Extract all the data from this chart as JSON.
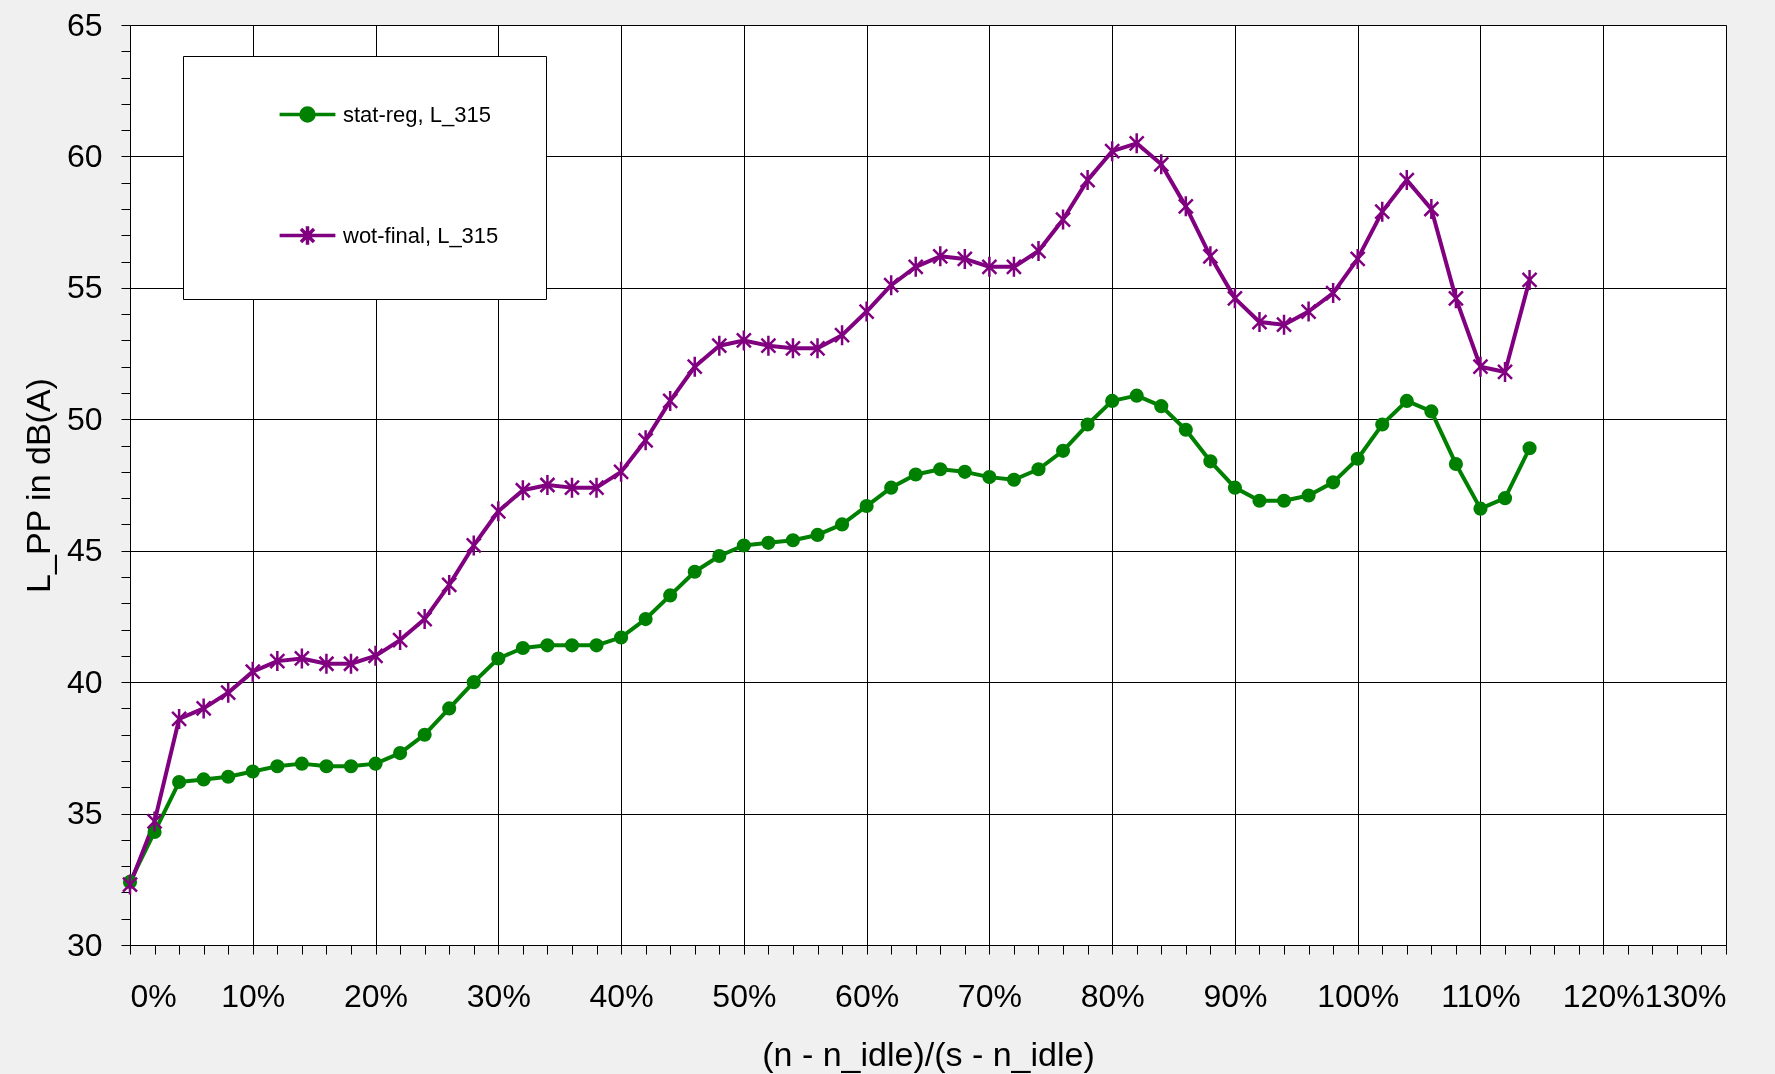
{
  "chart_data": {
    "type": "line",
    "xlabel": "(n - n_idle)/(s - n_idle)",
    "ylabel": "L_PP in dB(A)",
    "x": [
      0,
      2,
      4,
      6,
      8,
      10,
      12,
      14,
      16,
      18,
      20,
      22,
      24,
      26,
      28,
      30,
      32,
      34,
      36,
      38,
      40,
      42,
      44,
      46,
      48,
      50,
      52,
      54,
      56,
      58,
      60,
      62,
      64,
      66,
      68,
      70,
      72,
      74,
      76,
      78,
      80,
      82,
      84,
      86,
      88,
      90,
      92,
      94,
      96,
      98,
      100,
      102,
      104,
      106,
      108,
      110,
      112,
      114
    ],
    "xlim": [
      0,
      130
    ],
    "xticks": [
      {
        "value": 0,
        "label": "0%"
      },
      {
        "value": 2,
        "label": null
      },
      {
        "value": 4,
        "label": null
      },
      {
        "value": 6,
        "label": null
      },
      {
        "value": 8,
        "label": null
      },
      {
        "value": 10,
        "label": "10%"
      },
      {
        "value": 12,
        "label": null
      },
      {
        "value": 14,
        "label": null
      },
      {
        "value": 16,
        "label": null
      },
      {
        "value": 18,
        "label": null
      },
      {
        "value": 20,
        "label": "20%"
      },
      {
        "value": 22,
        "label": null
      },
      {
        "value": 24,
        "label": null
      },
      {
        "value": 26,
        "label": null
      },
      {
        "value": 28,
        "label": null
      },
      {
        "value": 30,
        "label": "30%"
      },
      {
        "value": 32,
        "label": null
      },
      {
        "value": 34,
        "label": null
      },
      {
        "value": 36,
        "label": null
      },
      {
        "value": 38,
        "label": null
      },
      {
        "value": 40,
        "label": "40%"
      },
      {
        "value": 42,
        "label": null
      },
      {
        "value": 44,
        "label": null
      },
      {
        "value": 46,
        "label": null
      },
      {
        "value": 48,
        "label": null
      },
      {
        "value": 50,
        "label": "50%"
      },
      {
        "value": 52,
        "label": null
      },
      {
        "value": 54,
        "label": null
      },
      {
        "value": 56,
        "label": null
      },
      {
        "value": 58,
        "label": null
      },
      {
        "value": 60,
        "label": "60%"
      },
      {
        "value": 62,
        "label": null
      },
      {
        "value": 64,
        "label": null
      },
      {
        "value": 66,
        "label": null
      },
      {
        "value": 68,
        "label": null
      },
      {
        "value": 70,
        "label": "70%"
      },
      {
        "value": 72,
        "label": null
      },
      {
        "value": 74,
        "label": null
      },
      {
        "value": 76,
        "label": null
      },
      {
        "value": 78,
        "label": null
      },
      {
        "value": 80,
        "label": "80%"
      },
      {
        "value": 82,
        "label": null
      },
      {
        "value": 84,
        "label": null
      },
      {
        "value": 86,
        "label": null
      },
      {
        "value": 88,
        "label": null
      },
      {
        "value": 90,
        "label": "90%"
      },
      {
        "value": 92,
        "label": null
      },
      {
        "value": 94,
        "label": null
      },
      {
        "value": 96,
        "label": null
      },
      {
        "value": 98,
        "label": null
      },
      {
        "value": 100,
        "label": "100%"
      },
      {
        "value": 102,
        "label": null
      },
      {
        "value": 104,
        "label": null
      },
      {
        "value": 106,
        "label": null
      },
      {
        "value": 108,
        "label": null
      },
      {
        "value": 110,
        "label": "110%"
      },
      {
        "value": 112,
        "label": null
      },
      {
        "value": 114,
        "label": null
      },
      {
        "value": 116,
        "label": null
      },
      {
        "value": 118,
        "label": null
      },
      {
        "value": 120,
        "label": "120%"
      },
      {
        "value": 122,
        "label": null
      },
      {
        "value": 124,
        "label": null
      },
      {
        "value": 126,
        "label": null
      },
      {
        "value": 128,
        "label": null
      },
      {
        "value": 130,
        "label": "130%"
      }
    ],
    "ylim": [
      30,
      65
    ],
    "yticks": [
      30,
      {
        "value": 31,
        "label": null
      },
      {
        "value": 32,
        "label": null
      },
      {
        "value": 33,
        "label": null
      },
      {
        "value": 34,
        "label": null
      },
      35,
      {
        "value": 36,
        "label": null
      },
      {
        "value": 37,
        "label": null
      },
      {
        "value": 38,
        "label": null
      },
      {
        "value": 39,
        "label": null
      },
      40,
      {
        "value": 41,
        "label": null
      },
      {
        "value": 42,
        "label": null
      },
      {
        "value": 43,
        "label": null
      },
      {
        "value": 44,
        "label": null
      },
      45,
      {
        "value": 46,
        "label": null
      },
      {
        "value": 47,
        "label": null
      },
      {
        "value": 48,
        "label": null
      },
      {
        "value": 49,
        "label": null
      },
      50,
      {
        "value": 51,
        "label": null
      },
      {
        "value": 52,
        "label": null
      },
      {
        "value": 53,
        "label": null
      },
      {
        "value": 54,
        "label": null
      },
      55,
      {
        "value": 56,
        "label": null
      },
      {
        "value": 57,
        "label": null
      },
      {
        "value": 58,
        "label": null
      },
      {
        "value": 59,
        "label": null
      },
      60,
      {
        "value": 61,
        "label": null
      },
      {
        "value": 62,
        "label": null
      },
      {
        "value": 63,
        "label": null
      },
      {
        "value": 64,
        "label": null
      },
      65
    ],
    "grid": true,
    "legend": "top left",
    "line_style": "solid",
    "series": [
      {
        "name": "stat-reg, L_315",
        "color": "#008000",
        "marker": "circle",
        "values": [
          32.4,
          34.3,
          36.2,
          36.3,
          36.4,
          36.6,
          36.8,
          36.9,
          36.8,
          36.8,
          36.9,
          37.3,
          38.0,
          39.0,
          40.0,
          40.9,
          41.3,
          41.4,
          41.4,
          41.4,
          41.7,
          42.4,
          43.3,
          44.2,
          44.8,
          45.2,
          45.3,
          45.4,
          45.6,
          46.0,
          46.7,
          47.4,
          47.9,
          48.1,
          48.0,
          47.8,
          47.7,
          48.1,
          48.8,
          49.8,
          50.7,
          50.9,
          50.5,
          49.6,
          48.4,
          47.4,
          46.9,
          46.9,
          47.1,
          47.6,
          48.5,
          49.8,
          50.7,
          50.3,
          48.3,
          46.6,
          47.0,
          48.9
        ]
      },
      {
        "name": "wot-final, L_315",
        "color": "#800080",
        "marker": "cross",
        "values": [
          32.3,
          34.7,
          38.6,
          39.0,
          39.6,
          40.4,
          40.8,
          40.9,
          40.7,
          40.7,
          41.0,
          41.6,
          42.4,
          43.7,
          45.2,
          46.5,
          47.3,
          47.5,
          47.4,
          47.4,
          48.0,
          49.2,
          50.7,
          52.0,
          52.8,
          53.0,
          52.8,
          52.7,
          52.7,
          53.2,
          54.1,
          55.1,
          55.8,
          56.2,
          56.1,
          55.8,
          55.8,
          56.4,
          57.6,
          59.1,
          60.2,
          60.5,
          59.7,
          58.1,
          56.2,
          54.6,
          53.7,
          53.6,
          54.1,
          54.8,
          56.1,
          57.9,
          59.1,
          58.0,
          54.6,
          52.0,
          51.8,
          55.3
        ]
      }
    ]
  }
}
